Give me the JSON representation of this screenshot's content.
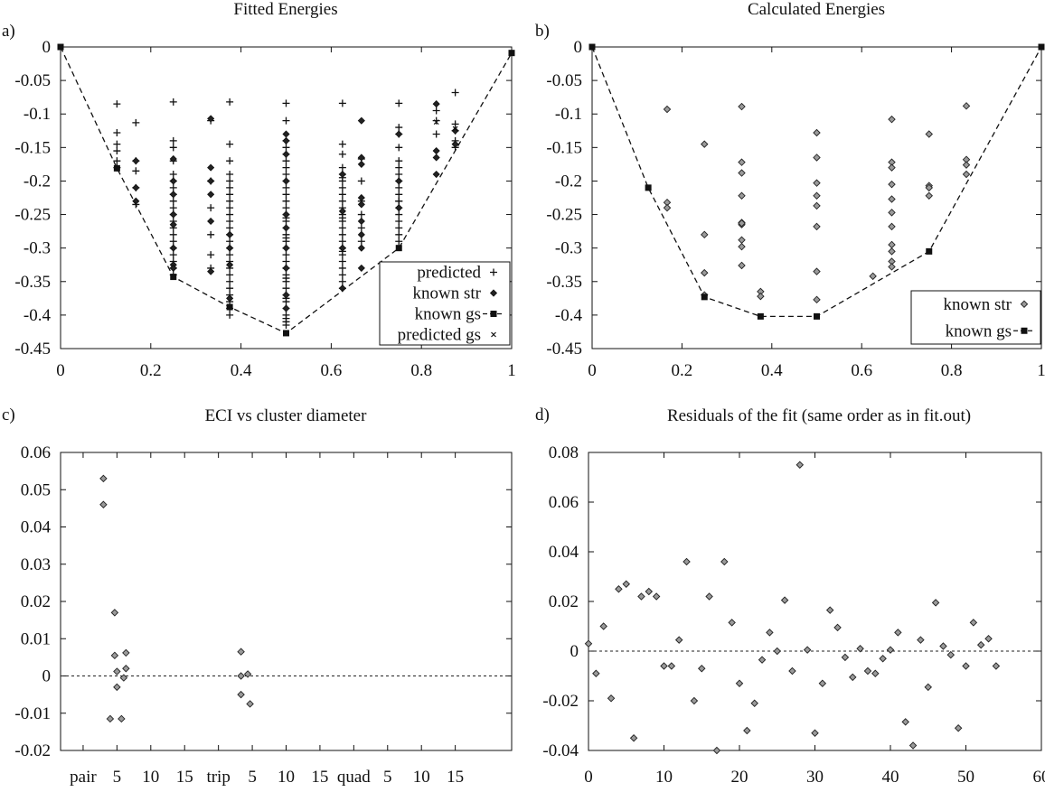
{
  "chart_data": [
    {
      "panel_label": "a)",
      "type": "scatter",
      "title": "Fitted Energies",
      "xlim": [
        0,
        1
      ],
      "ylim": [
        -0.45,
        0
      ],
      "xticks": [
        "0",
        "0.2",
        "0.4",
        "0.6",
        "0.8",
        "1"
      ],
      "yticks": [
        "0",
        "-0.05",
        "-0.1",
        "-0.15",
        "-0.2",
        "-0.25",
        "-0.3",
        "-0.35",
        "-0.4",
        "-0.45"
      ],
      "legend_position": "bottom-right",
      "legend": [
        "predicted",
        "known str",
        "known gs",
        "predicted gs"
      ],
      "series": [
        {
          "name": "predicted",
          "marker": "plus",
          "x": [
            0.125,
            0.125,
            0.125,
            0.125,
            0.125,
            0.125,
            0.167,
            0.167,
            0.167,
            0.167,
            0.167,
            0.25,
            0.25,
            0.25,
            0.25,
            0.25,
            0.25,
            0.25,
            0.25,
            0.25,
            0.25,
            0.25,
            0.25,
            0.25,
            0.25,
            0.25,
            0.25,
            0.25,
            0.25,
            0.25,
            0.25,
            0.333,
            0.333,
            0.333,
            0.333,
            0.333,
            0.333,
            0.375,
            0.375,
            0.375,
            0.375,
            0.375,
            0.375,
            0.375,
            0.375,
            0.375,
            0.375,
            0.375,
            0.375,
            0.375,
            0.375,
            0.375,
            0.375,
            0.375,
            0.375,
            0.375,
            0.375,
            0.375,
            0.375,
            0.375,
            0.375,
            0.375,
            0.5,
            0.5,
            0.5,
            0.5,
            0.5,
            0.5,
            0.5,
            0.5,
            0.5,
            0.5,
            0.5,
            0.5,
            0.5,
            0.5,
            0.5,
            0.5,
            0.5,
            0.5,
            0.5,
            0.5,
            0.5,
            0.5,
            0.5,
            0.5,
            0.5,
            0.5,
            0.5,
            0.5,
            0.5,
            0.5,
            0.5,
            0.5,
            0.5,
            0.5,
            0.5,
            0.5,
            0.5,
            0.625,
            0.625,
            0.625,
            0.625,
            0.625,
            0.625,
            0.625,
            0.625,
            0.625,
            0.625,
            0.625,
            0.625,
            0.625,
            0.625,
            0.625,
            0.625,
            0.625,
            0.625,
            0.625,
            0.625,
            0.625,
            0.625,
            0.625,
            0.625,
            0.625,
            0.667,
            0.667,
            0.667,
            0.667,
            0.667,
            0.667,
            0.75,
            0.75,
            0.75,
            0.75,
            0.75,
            0.75,
            0.75,
            0.75,
            0.75,
            0.75,
            0.75,
            0.75,
            0.75,
            0.75,
            0.75,
            0.75,
            0.75,
            0.75,
            0.833,
            0.833,
            0.833,
            0.875,
            0.875,
            0.875,
            0.875,
            0.875
          ],
          "y": [
            -0.085,
            -0.128,
            -0.145,
            -0.155,
            -0.17,
            -0.18,
            -0.113,
            -0.17,
            -0.185,
            -0.21,
            -0.235,
            -0.082,
            -0.14,
            -0.15,
            -0.17,
            -0.19,
            -0.2,
            -0.21,
            -0.22,
            -0.23,
            -0.24,
            -0.25,
            -0.26,
            -0.27,
            -0.28,
            -0.29,
            -0.3,
            -0.31,
            -0.32,
            -0.33,
            -0.34,
            -0.11,
            -0.2,
            -0.24,
            -0.28,
            -0.31,
            -0.33,
            -0.082,
            -0.145,
            -0.17,
            -0.19,
            -0.2,
            -0.21,
            -0.22,
            -0.23,
            -0.24,
            -0.25,
            -0.26,
            -0.27,
            -0.28,
            -0.29,
            -0.3,
            -0.31,
            -0.32,
            -0.33,
            -0.34,
            -0.35,
            -0.36,
            -0.37,
            -0.38,
            -0.39,
            -0.4,
            -0.084,
            -0.11,
            -0.14,
            -0.16,
            -0.18,
            -0.19,
            -0.2,
            -0.21,
            -0.22,
            -0.23,
            -0.24,
            -0.25,
            -0.26,
            -0.27,
            -0.28,
            -0.29,
            -0.3,
            -0.31,
            -0.32,
            -0.33,
            -0.34,
            -0.35,
            -0.36,
            -0.37,
            -0.38,
            -0.39,
            -0.4,
            -0.41,
            -0.415,
            -0.15,
            -0.17,
            -0.255,
            -0.285,
            -0.33,
            -0.345,
            -0.375,
            -0.405,
            -0.084,
            -0.145,
            -0.16,
            -0.18,
            -0.19,
            -0.2,
            -0.21,
            -0.22,
            -0.23,
            -0.24,
            -0.25,
            -0.26,
            -0.27,
            -0.28,
            -0.29,
            -0.3,
            -0.31,
            -0.32,
            -0.33,
            -0.34,
            -0.35,
            -0.36,
            -0.195,
            -0.255,
            -0.305,
            -0.167,
            -0.2,
            -0.23,
            -0.25,
            -0.27,
            -0.29,
            -0.084,
            -0.13,
            -0.15,
            -0.17,
            -0.19,
            -0.2,
            -0.21,
            -0.22,
            -0.23,
            -0.24,
            -0.25,
            -0.26,
            -0.27,
            -0.28,
            -0.29,
            -0.12,
            -0.18,
            -0.23,
            -0.095,
            -0.11,
            -0.13,
            -0.068,
            -0.115,
            -0.125,
            -0.14,
            -0.15
          ]
        },
        {
          "name": "known str",
          "marker": "diamond",
          "x": [
            0.167,
            0.167,
            0.167,
            0.25,
            0.25,
            0.25,
            0.25,
            0.25,
            0.25,
            0.25,
            0.25,
            0.333,
            0.333,
            0.333,
            0.333,
            0.333,
            0.333,
            0.375,
            0.375,
            0.375,
            0.375,
            0.5,
            0.5,
            0.5,
            0.5,
            0.5,
            0.5,
            0.5,
            0.5,
            0.5,
            0.5,
            0.625,
            0.625,
            0.625,
            0.625,
            0.667,
            0.667,
            0.667,
            0.667,
            0.667,
            0.667,
            0.667,
            0.667,
            0.667,
            0.75,
            0.75,
            0.75,
            0.833,
            0.833,
            0.833,
            0.833,
            0.875,
            0.875
          ],
          "y": [
            -0.17,
            -0.21,
            -0.23,
            -0.167,
            -0.2,
            -0.22,
            -0.25,
            -0.265,
            -0.3,
            -0.325,
            -0.33,
            -0.107,
            -0.18,
            -0.2,
            -0.22,
            -0.26,
            -0.335,
            -0.28,
            -0.3,
            -0.325,
            -0.375,
            -0.13,
            -0.14,
            -0.16,
            -0.2,
            -0.25,
            -0.27,
            -0.3,
            -0.33,
            -0.37,
            -0.39,
            -0.19,
            -0.245,
            -0.3,
            -0.36,
            -0.11,
            -0.165,
            -0.175,
            -0.225,
            -0.235,
            -0.26,
            -0.28,
            -0.3,
            -0.33,
            -0.13,
            -0.2,
            -0.24,
            -0.085,
            -0.155,
            -0.165,
            -0.19,
            -0.125,
            -0.145
          ]
        },
        {
          "name": "known gs",
          "marker": "square",
          "line": "dashed",
          "x": [
            0,
            0.125,
            0.25,
            0.375,
            0.5,
            0.75,
            1
          ],
          "y": [
            0,
            -0.181,
            -0.343,
            -0.388,
            -0.427,
            -0.3,
            -0.009
          ]
        },
        {
          "name": "predicted gs",
          "marker": "x",
          "x": [
            0.833,
            0.875
          ],
          "y": [
            -0.112,
            -0.122
          ]
        }
      ]
    },
    {
      "panel_label": "b)",
      "type": "scatter",
      "title": "Calculated Energies",
      "xlim": [
        0,
        1
      ],
      "ylim": [
        -0.45,
        0
      ],
      "xticks": [
        "0",
        "0.2",
        "0.4",
        "0.6",
        "0.8",
        "1"
      ],
      "yticks": [
        "0",
        "-0.05",
        "-0.1",
        "-0.15",
        "-0.2",
        "-0.25",
        "-0.3",
        "-0.35",
        "-0.4",
        "-0.45"
      ],
      "legend_position": "bottom-right",
      "legend": [
        "known str",
        "known gs"
      ],
      "series": [
        {
          "name": "known str",
          "marker": "diamond",
          "x": [
            0.167,
            0.167,
            0.167,
            0.25,
            0.25,
            0.25,
            0.25,
            0.333,
            0.333,
            0.333,
            0.333,
            0.333,
            0.333,
            0.333,
            0.333,
            0.333,
            0.333,
            0.375,
            0.375,
            0.5,
            0.5,
            0.5,
            0.5,
            0.5,
            0.5,
            0.5,
            0.5,
            0.625,
            0.667,
            0.667,
            0.667,
            0.667,
            0.667,
            0.667,
            0.667,
            0.667,
            0.667,
            0.667,
            0.667,
            0.75,
            0.75,
            0.75,
            0.75,
            0.833,
            0.833,
            0.833,
            0.833
          ],
          "y": [
            -0.093,
            -0.232,
            -0.24,
            -0.145,
            -0.28,
            -0.337,
            -0.37,
            -0.089,
            -0.172,
            -0.188,
            -0.222,
            -0.262,
            -0.265,
            -0.288,
            -0.298,
            -0.326,
            -0.263,
            -0.365,
            -0.372,
            -0.128,
            -0.165,
            -0.203,
            -0.222,
            -0.237,
            -0.268,
            -0.335,
            -0.377,
            -0.342,
            -0.108,
            -0.172,
            -0.18,
            -0.205,
            -0.227,
            -0.247,
            -0.268,
            -0.295,
            -0.305,
            -0.32,
            -0.328,
            -0.13,
            -0.207,
            -0.21,
            -0.222,
            -0.088,
            -0.168,
            -0.176,
            -0.19
          ]
        },
        {
          "name": "known gs",
          "marker": "square",
          "line": "dashed",
          "x": [
            0,
            0.125,
            0.25,
            0.375,
            0.5,
            0.75,
            1
          ],
          "y": [
            0,
            -0.21,
            -0.373,
            -0.402,
            -0.402,
            -0.305,
            0
          ]
        }
      ]
    },
    {
      "panel_label": "c)",
      "type": "scatter",
      "title": "ECI vs cluster diameter",
      "xlim": [
        0,
        20
      ],
      "ylim": [
        -0.02,
        0.06
      ],
      "xticks": [
        {
          "x": 1,
          "label": "pair"
        },
        {
          "x": 2.5,
          "label": "5"
        },
        {
          "x": 4,
          "label": "10"
        },
        {
          "x": 5.5,
          "label": "15"
        },
        {
          "x": 7,
          "label": "trip"
        },
        {
          "x": 8.5,
          "label": "5"
        },
        {
          "x": 10,
          "label": "10"
        },
        {
          "x": 11.5,
          "label": "15"
        },
        {
          "x": 13,
          "label": "quad"
        },
        {
          "x": 14.5,
          "label": "5"
        },
        {
          "x": 16,
          "label": "10"
        },
        {
          "x": 17.5,
          "label": "15"
        }
      ],
      "yticks": [
        "0.06",
        "0.05",
        "0.04",
        "0.03",
        "0.02",
        "0.01",
        "0",
        "-0.01",
        "-0.02"
      ],
      "zero_line": "dotted",
      "series": [
        {
          "name": "",
          "marker": "diamond",
          "x": [
            1.9,
            1.9,
            2.2,
            2.4,
            2.4,
            2.5,
            2.5,
            2.7,
            2.8,
            2.9,
            2.9,
            8.0,
            8.0,
            8.0,
            8.3,
            8.4
          ],
          "y": [
            0.053,
            0.046,
            -0.0115,
            0.017,
            0.0055,
            0.0012,
            -0.003,
            -0.0115,
            -0.0005,
            0.0062,
            0.002,
            0.0065,
            0.0,
            -0.005,
            0.0005,
            -0.0075
          ]
        }
      ]
    },
    {
      "panel_label": "d)",
      "type": "scatter",
      "title": "Residuals of the fit (same order as in fit.out)",
      "xlim": [
        0,
        60
      ],
      "ylim": [
        -0.04,
        0.08
      ],
      "xticks": [
        "0",
        "10",
        "20",
        "30",
        "40",
        "50",
        "60"
      ],
      "yticks": [
        "0.08",
        "0.06",
        "0.04",
        "0.02",
        "0",
        "-0.02",
        "-0.04"
      ],
      "zero_line": "dotted",
      "series": [
        {
          "name": "",
          "marker": "diamond",
          "x": [
            0,
            1,
            2,
            3,
            4,
            5,
            6,
            7,
            8,
            9,
            10,
            11,
            12,
            13,
            14,
            15,
            16,
            17,
            18,
            19,
            20,
            21,
            22,
            23,
            24,
            25,
            26,
            27,
            28,
            29,
            30,
            31,
            32,
            33,
            34,
            35,
            36,
            37,
            38,
            39,
            40,
            41,
            42,
            43,
            44,
            45,
            46,
            47,
            48,
            49,
            50,
            51,
            52,
            53,
            54
          ],
          "y": [
            0.003,
            -0.009,
            0.01,
            -0.019,
            0.025,
            0.027,
            -0.035,
            0.022,
            0.024,
            0.022,
            -0.006,
            -0.006,
            0.0045,
            0.036,
            -0.02,
            -0.007,
            0.022,
            -0.04,
            0.036,
            0.0115,
            -0.013,
            -0.032,
            -0.021,
            -0.0035,
            0.0075,
            0.0,
            0.0205,
            -0.008,
            0.075,
            0.0005,
            -0.033,
            -0.013,
            0.0165,
            0.0095,
            -0.0025,
            -0.0105,
            0.001,
            -0.008,
            -0.009,
            -0.003,
            0.0005,
            0.0075,
            -0.0285,
            -0.038,
            0.0045,
            -0.0145,
            0.0195,
            0.002,
            -0.0015,
            -0.031,
            -0.006,
            0.0115,
            0.0025,
            0.005,
            -0.006
          ]
        }
      ]
    }
  ]
}
